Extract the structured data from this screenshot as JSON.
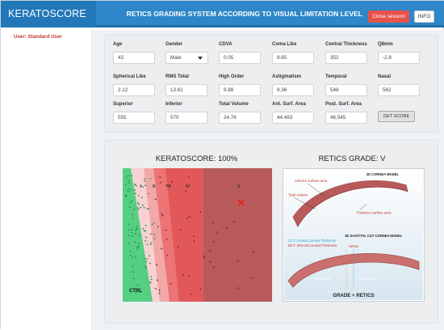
{
  "header": {
    "logo": "KERATOSCORE",
    "title": "RETICS GRADING SYSTEM ACCORDING TO VISUAL LIMITATION LEVEL",
    "close_label": "Close session",
    "info_label": "INFO"
  },
  "sidebar": {
    "user": "User: Standard User"
  },
  "form": {
    "fields": [
      {
        "label": "Age",
        "value": "43"
      },
      {
        "label": "Gender",
        "value": "Male"
      },
      {
        "label": "CDVA",
        "value": "0.05"
      },
      {
        "label": "Coma Like",
        "value": "9.65"
      },
      {
        "label": "Central Thickness",
        "value": "352"
      },
      {
        "label": "Q8mm",
        "value": "-2.8"
      },
      {
        "label": "Spherical Like",
        "value": "2.12"
      },
      {
        "label": "RMS Total",
        "value": "13.61"
      },
      {
        "label": "High Order",
        "value": "9.88"
      },
      {
        "label": "Astigmatism",
        "value": "9.36"
      },
      {
        "label": "Temporal",
        "value": "548"
      },
      {
        "label": "Nasal",
        "value": "562"
      },
      {
        "label": "Superior",
        "value": "555"
      },
      {
        "label": "Inferior",
        "value": "570"
      },
      {
        "label": "Total Volume",
        "value": "24.76"
      },
      {
        "label": "Ant. Surf. Area",
        "value": "44.493"
      },
      {
        "label": "Post. Surf. Area",
        "value": "46.545"
      }
    ],
    "get_score_label": "GET SCORE"
  },
  "results": {
    "keratoscore_title": "KERATOSCORE: 100%",
    "retics_title": "RETICS GRADE: V"
  },
  "plot": {
    "zones": [
      "I",
      "II",
      "III",
      "IV",
      "V"
    ],
    "ctrl_label": "CTRL",
    "colors": {
      "ctrl": "#55cf82",
      "z1": "#f7d2d2",
      "z2": "#f2a8a8",
      "z3": "#ec7474",
      "z4": "#e25858",
      "z5": "#b85a5a",
      "marker": "#e8201a"
    }
  },
  "cornea_model": {
    "model3d_label": "3D CORNEA MODEL",
    "anterior_label": "Anterior surface area",
    "total_volume_label": "Total volume",
    "posterior_label": "Posterior surface area",
    "sagittal_label": "3D SAGITTAL CUT CORNEA MODEL",
    "cct_label": "CCT: Central Corneal Thickness",
    "mct_label": "MCT: Minimal Corneal Thickness",
    "vertex_label": "Vertex",
    "visual_axis_label": "Visual Axis",
    "optical_axis_label": "Optical Axis",
    "footer_label": "GRADE + RETICS"
  }
}
